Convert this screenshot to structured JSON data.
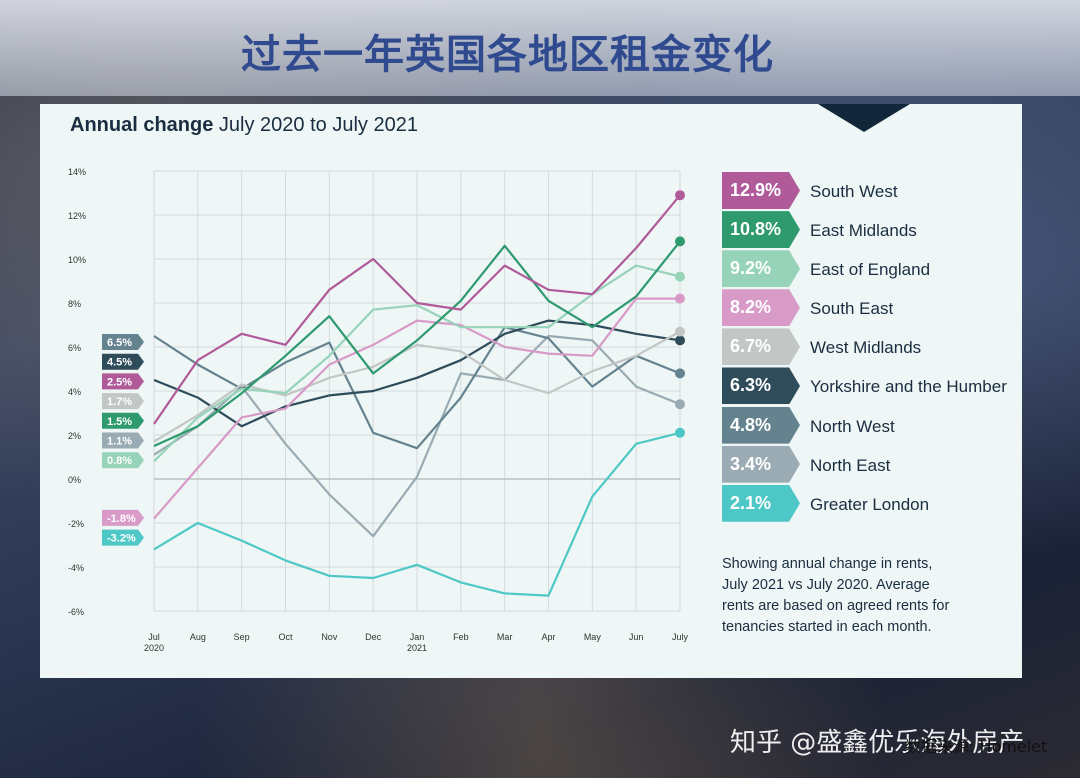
{
  "page": {
    "title": "过去一年英国各地区租金变化",
    "watermark": "知乎 @盛鑫优乐海外房产",
    "source": "数据来源: Homelet"
  },
  "chart_data": {
    "type": "line",
    "title_bold": "Annual change",
    "title_rest": " July 2020 to July 2021",
    "x_ticks": [
      [
        "Jul",
        "2020"
      ],
      [
        "Aug",
        ""
      ],
      [
        "Sep",
        ""
      ],
      [
        "Oct",
        ""
      ],
      [
        "Nov",
        ""
      ],
      [
        "Dec",
        ""
      ],
      [
        "Jan",
        "2021"
      ],
      [
        "Feb",
        ""
      ],
      [
        "Mar",
        ""
      ],
      [
        "Apr",
        ""
      ],
      [
        "May",
        ""
      ],
      [
        "Jun",
        ""
      ],
      [
        "July",
        ""
      ]
    ],
    "y_ticks": [
      "14%",
      "12%",
      "10%",
      "8%",
      "6%",
      "4%",
      "2%",
      "0%",
      "-2%",
      "-4%",
      "-6%"
    ],
    "ylim": [
      -6,
      14
    ],
    "grid": true,
    "legend_position": "right",
    "series": [
      {
        "name": "South West",
        "label": "12.9%",
        "color": "#b05a9a",
        "values": [
          2.5,
          5.4,
          6.6,
          6.1,
          8.6,
          10.0,
          8.0,
          7.7,
          9.7,
          8.6,
          8.4,
          10.5,
          12.9
        ]
      },
      {
        "name": "East Midlands",
        "label": "10.8%",
        "color": "#2e9a6e",
        "values": [
          1.5,
          2.4,
          3.9,
          5.6,
          7.4,
          4.8,
          6.3,
          8.1,
          10.6,
          8.1,
          6.9,
          8.3,
          10.8
        ]
      },
      {
        "name": "East of England",
        "label": "9.2%",
        "color": "#96d3b9",
        "values": [
          0.8,
          2.8,
          4.1,
          3.9,
          5.6,
          7.7,
          7.9,
          6.9,
          6.9,
          6.9,
          8.4,
          9.7,
          9.2
        ]
      },
      {
        "name": "South East",
        "label": "8.2%",
        "color": "#d89ac6",
        "values": [
          -1.8,
          0.5,
          2.8,
          3.2,
          5.2,
          6.1,
          7.2,
          7.0,
          6.0,
          5.7,
          5.6,
          8.2,
          8.2
        ]
      },
      {
        "name": "West Midlands",
        "label": "6.7%",
        "color": "#c2c7c6",
        "values": [
          1.7,
          2.9,
          4.3,
          3.8,
          4.6,
          5.1,
          6.1,
          5.8,
          4.5,
          3.9,
          4.9,
          5.6,
          6.7
        ]
      },
      {
        "name": "Yorkshire and the Humber",
        "label": "6.3%",
        "color": "#2f4c5a",
        "values": [
          4.5,
          3.7,
          2.4,
          3.3,
          3.8,
          4.0,
          4.6,
          5.4,
          6.6,
          7.2,
          7.0,
          6.6,
          6.3
        ]
      },
      {
        "name": "North West",
        "label": "4.8%",
        "color": "#65828f",
        "values": [
          6.5,
          5.2,
          4.1,
          5.3,
          6.2,
          2.1,
          1.4,
          3.7,
          6.9,
          6.4,
          4.2,
          5.6,
          4.8
        ]
      },
      {
        "name": "North East",
        "label": "3.4%",
        "color": "#9aabb3",
        "values": [
          1.1,
          2.4,
          4.2,
          1.6,
          -0.7,
          -2.6,
          0.1,
          4.8,
          4.5,
          6.5,
          6.3,
          4.2,
          3.4
        ]
      },
      {
        "name": "Greater London",
        "label": "2.1%",
        "color": "#4ec8c6",
        "values": [
          -3.2,
          -2.0,
          -2.8,
          -3.7,
          -4.4,
          -4.5,
          -3.9,
          -4.7,
          -5.2,
          -5.3,
          -0.8,
          1.6,
          2.1
        ]
      }
    ],
    "start_labels": [
      {
        "text": "6.5%",
        "color": "#65828f"
      },
      {
        "text": "4.5%",
        "color": "#2f4c5a"
      },
      {
        "text": "2.5%",
        "color": "#b05a9a"
      },
      {
        "text": "1.7%",
        "color": "#c2c7c6"
      },
      {
        "text": "1.5%",
        "color": "#2e9a6e"
      },
      {
        "text": "1.1%",
        "color": "#9aabb3"
      },
      {
        "text": "0.8%",
        "color": "#96d3b9"
      },
      {
        "text": "-1.8%",
        "color": "#d89ac6"
      },
      {
        "text": "-3.2%",
        "color": "#4ec8c6"
      }
    ],
    "note": "Showing annual change in rents, July 2021 vs July 2020. Average rents are based on agreed rents for tenancies started in each month."
  }
}
